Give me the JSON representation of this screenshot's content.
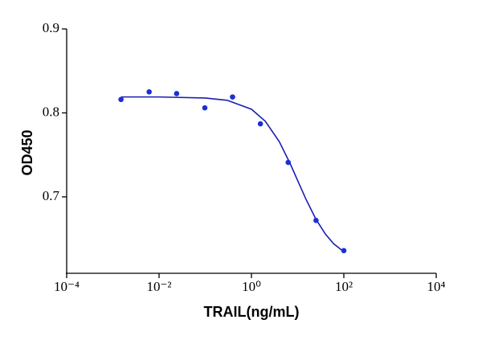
{
  "chart_data": {
    "type": "scatter",
    "x_label": "TRAIL(ng/mL)",
    "y_label": "OD450",
    "xscale": "log",
    "xlim": [
      0.0001,
      10000
    ],
    "ylim": [
      0.609,
      0.9
    ],
    "xticks": [
      {
        "value": 0.0001,
        "label": "10⁻⁴"
      },
      {
        "value": 0.01,
        "label": "10⁻²"
      },
      {
        "value": 1,
        "label": "10⁰"
      },
      {
        "value": 100,
        "label": "10²"
      },
      {
        "value": 10000,
        "label": "10⁴"
      }
    ],
    "yticks": [
      0.7,
      0.8,
      0.9
    ],
    "series": [
      {
        "color": "#1c2fd6",
        "x": [
          0.0015,
          0.0061,
          0.024,
          0.098,
          0.39,
          1.5625,
          6.25,
          25,
          100
        ],
        "values": [
          0.816,
          0.825,
          0.823,
          0.806,
          0.819,
          0.787,
          0.741,
          0.672,
          0.636
        ]
      }
    ],
    "curve": {
      "color": "#1a1fb0",
      "x": [
        0.0015,
        0.01,
        0.1,
        0.3,
        1,
        2,
        4,
        7,
        10,
        15,
        25,
        40,
        60,
        100
      ],
      "y": [
        0.819,
        0.819,
        0.8177,
        0.815,
        0.8044,
        0.79,
        0.7658,
        0.7388,
        0.7195,
        0.6977,
        0.6732,
        0.6556,
        0.6443,
        0.6346
      ]
    }
  }
}
